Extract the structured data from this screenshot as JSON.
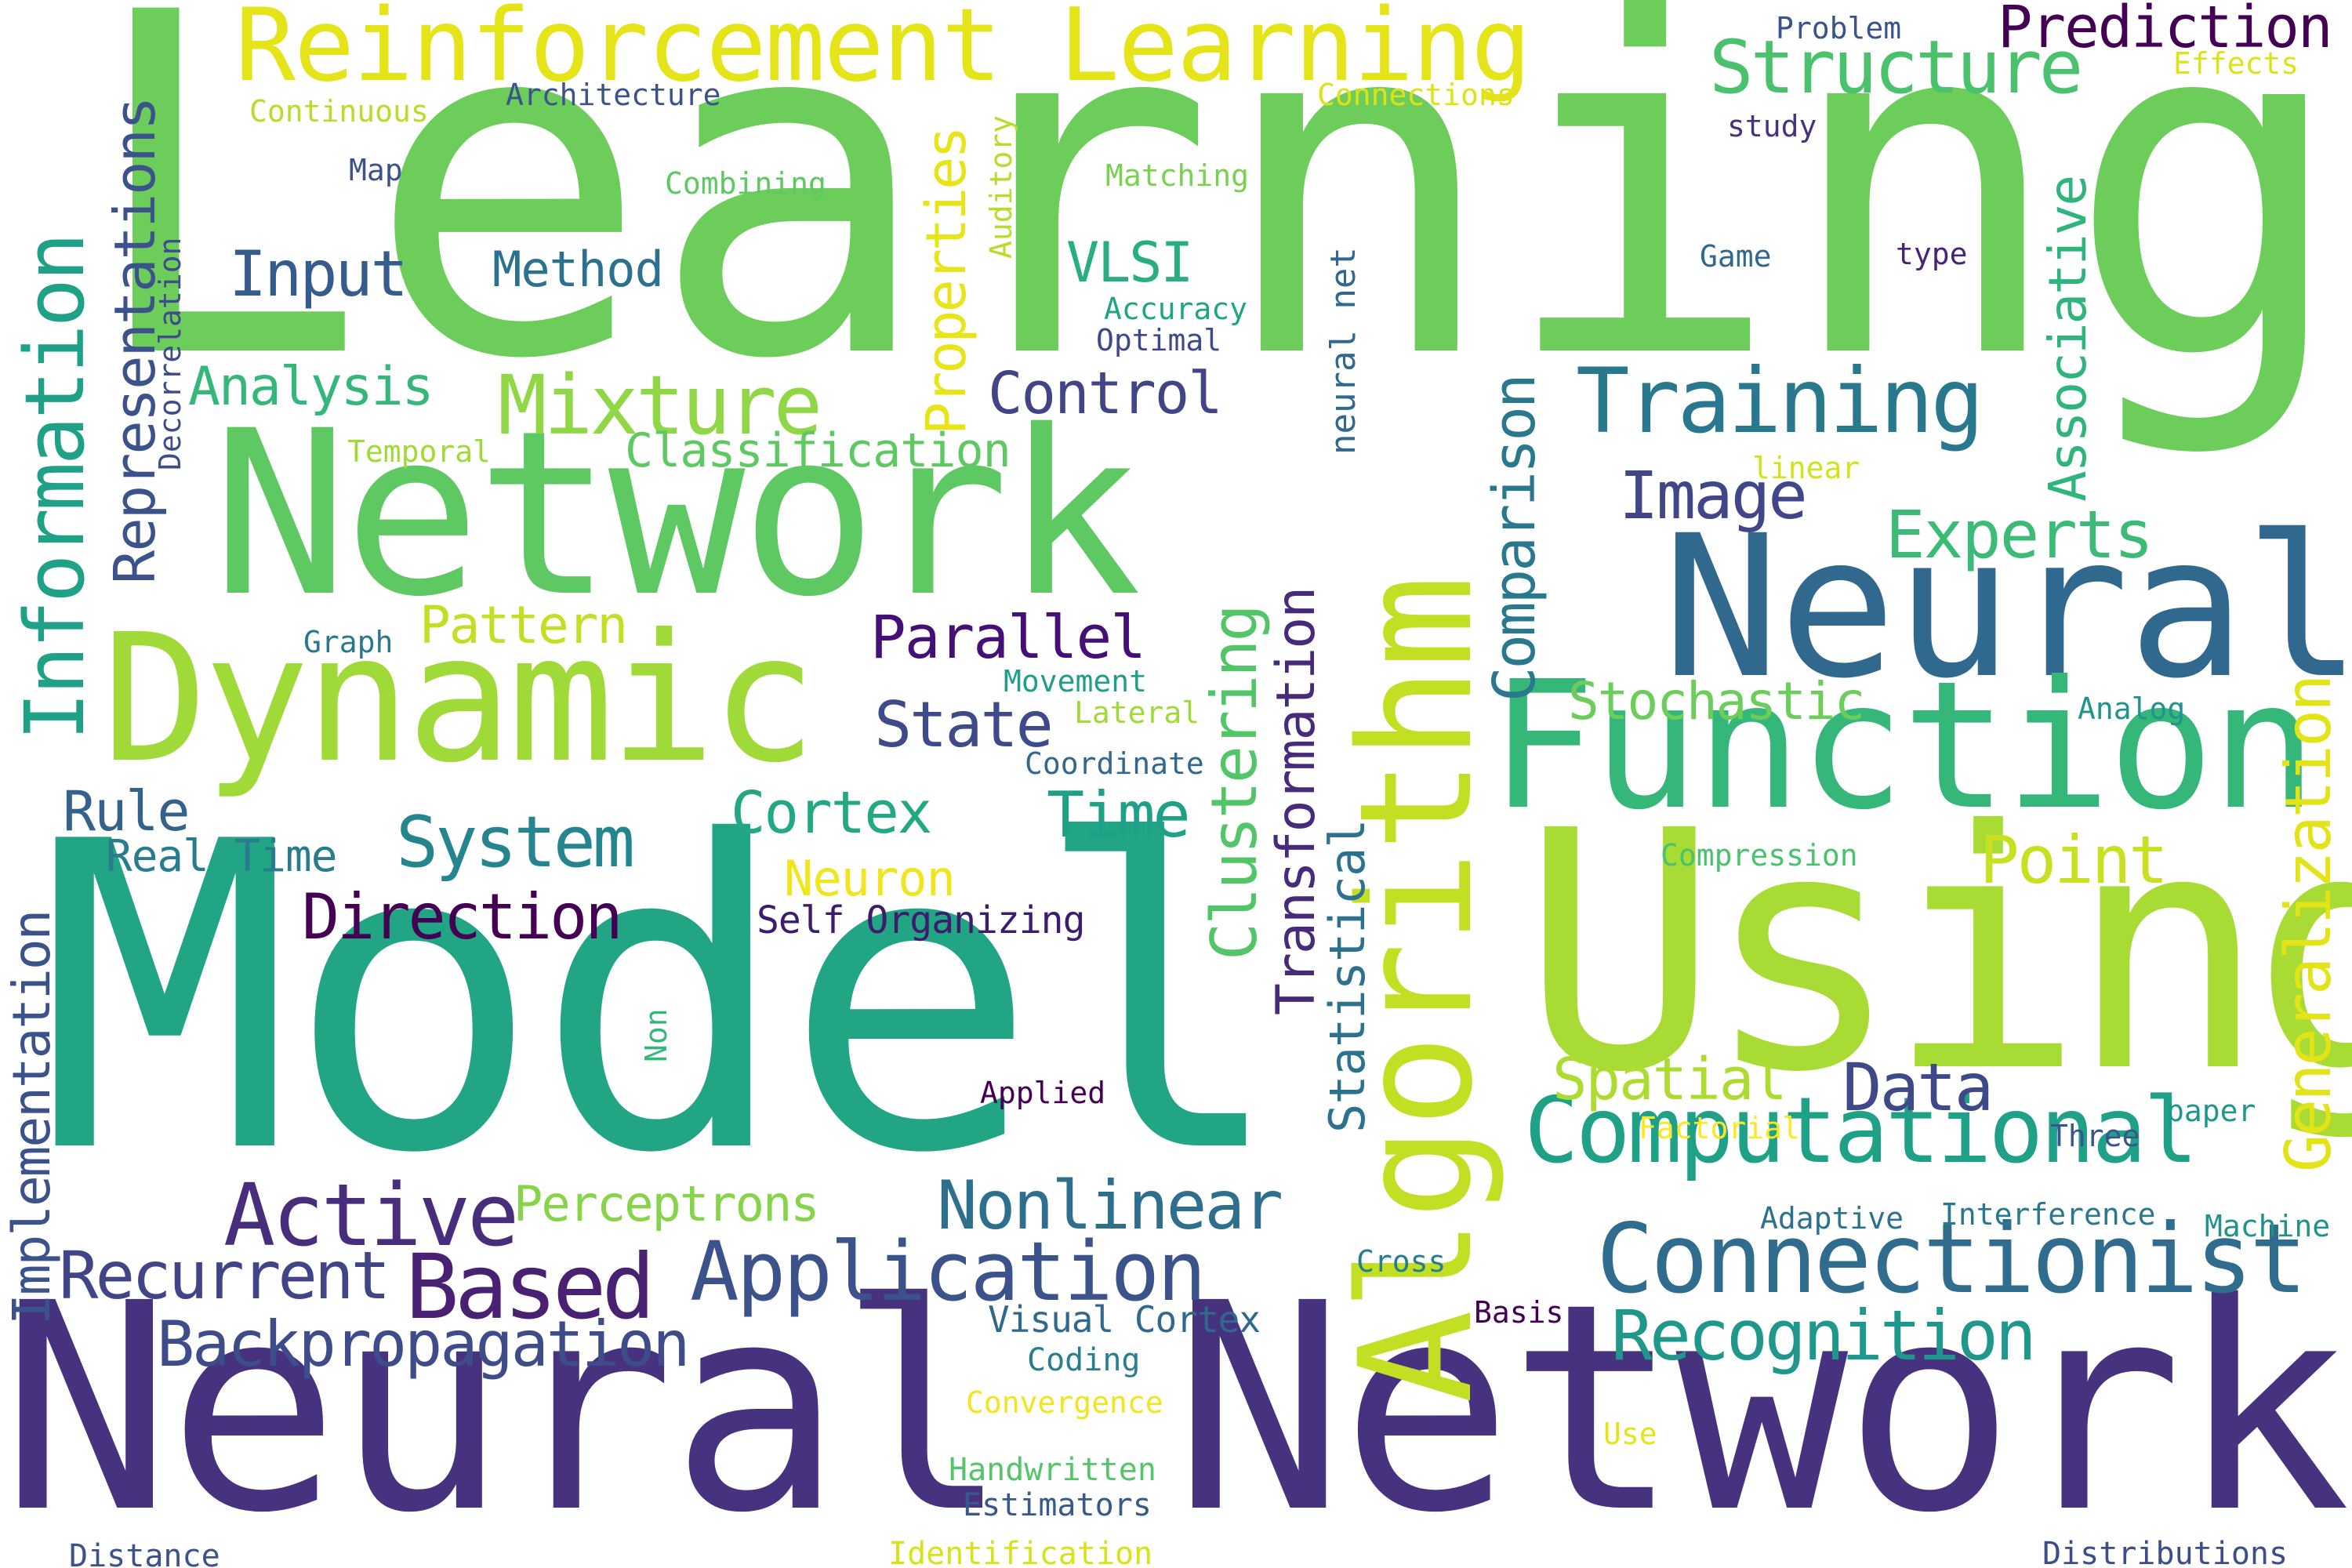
{
  "palette": {
    "dark_purple": "#440154",
    "indigo": "#46327e",
    "blue": "#365c8d",
    "steel_blue": "#2f6c8e",
    "teal_blue": "#277f8e",
    "teal": "#1fa187",
    "sea_green": "#21a585",
    "green": "#4ac16d",
    "bright_green": "#6ccd5a",
    "lime": "#a0da39",
    "yellow_green": "#c2df23",
    "yellow": "#e4e419",
    "bright_yellow": "#f0e51f"
  },
  "words": [
    {
      "text": "Learning",
      "color": "#6ccd5a"
    },
    {
      "text": "Neural Network",
      "color": "#46327e"
    },
    {
      "text": "Model",
      "color": "#21a585"
    },
    {
      "text": "Network",
      "color": "#5ec962"
    },
    {
      "text": "Using",
      "color": "#a8db34"
    },
    {
      "text": "Neural",
      "color": "#31688e"
    },
    {
      "text": "Function",
      "color": "#35b779"
    },
    {
      "text": "Dynamic",
      "color": "#a0da39"
    },
    {
      "text": "Algorithm",
      "color": "#c2df23"
    },
    {
      "text": "Reinforcement Learning",
      "color": "#e4e419"
    },
    {
      "text": "Connectionist",
      "color": "#2f6c8e"
    },
    {
      "text": "Computational",
      "color": "#1fa187"
    },
    {
      "text": "Training",
      "color": "#2a788e"
    },
    {
      "text": "Application",
      "color": "#3b528b"
    },
    {
      "text": "Nonlinear",
      "color": "#2e6f8e"
    },
    {
      "text": "Recognition",
      "color": "#1f988b"
    },
    {
      "text": "Active",
      "color": "#472d7b"
    },
    {
      "text": "Based",
      "color": "#482173"
    },
    {
      "text": "Backpropagation",
      "color": "#3e4c8a"
    },
    {
      "text": "Recurrent",
      "color": "#414487"
    },
    {
      "text": "Mixture",
      "color": "#8fd744"
    },
    {
      "text": "Network",
      "color": "#5ec962"
    },
    {
      "text": "Structure",
      "color": "#4ac16d"
    },
    {
      "text": "Prediction",
      "color": "#440154"
    },
    {
      "text": "Experts",
      "color": "#3bbb75"
    },
    {
      "text": "Image",
      "color": "#404688"
    },
    {
      "text": "Data",
      "color": "#3e4989"
    },
    {
      "text": "Point",
      "color": "#c8e020"
    },
    {
      "text": "Spatial",
      "color": "#addc30"
    },
    {
      "text": "Direction",
      "color": "#440154"
    },
    {
      "text": "System",
      "color": "#25858e"
    },
    {
      "text": "Cortex",
      "color": "#22a884"
    },
    {
      "text": "Time",
      "color": "#1fa187"
    },
    {
      "text": "State",
      "color": "#3e4a89"
    },
    {
      "text": "Parallel",
      "color": "#440f76"
    },
    {
      "text": "Stochastic",
      "color": "#6ccd5a"
    },
    {
      "text": "Control",
      "color": "#414487"
    },
    {
      "text": "Input",
      "color": "#365c8d"
    },
    {
      "text": "Method",
      "color": "#2c728e"
    },
    {
      "text": "Analysis",
      "color": "#35b779"
    },
    {
      "text": "VLSI",
      "color": "#29af7f"
    },
    {
      "text": "Pattern",
      "color": "#c2df23"
    },
    {
      "text": "Classification",
      "color": "#5ec962"
    },
    {
      "text": "Neuron",
      "color": "#f0e51f"
    },
    {
      "text": "Perceptrons",
      "color": "#86d549"
    },
    {
      "text": "Rule",
      "color": "#33638d"
    },
    {
      "text": "Real Time",
      "color": "#287c8e"
    },
    {
      "text": "Self Organizing",
      "color": "#3d1c6e"
    },
    {
      "text": "Visual Cortex",
      "color": "#31688e"
    },
    {
      "text": "Coding",
      "color": "#277f8e"
    },
    {
      "text": "Convergence",
      "color": "#f0e51f"
    },
    {
      "text": "Handwritten",
      "color": "#54c568"
    },
    {
      "text": "Estimators",
      "color": "#375a8c"
    },
    {
      "text": "Identification",
      "color": "#d8e219"
    },
    {
      "text": "Distance",
      "color": "#3b528b"
    },
    {
      "text": "Distributions",
      "color": "#3d4d8a"
    },
    {
      "text": "Use",
      "color": "#e5e419"
    },
    {
      "text": "Basis",
      "color": "#440154"
    },
    {
      "text": "Cross",
      "color": "#287d8e"
    },
    {
      "text": "Adaptive",
      "color": "#2c728e"
    },
    {
      "text": "Interference",
      "color": "#2a788e"
    },
    {
      "text": "Machine",
      "color": "#21918c"
    },
    {
      "text": "Three",
      "color": "#39568c"
    },
    {
      "text": "paper",
      "color": "#1f968b"
    },
    {
      "text": "Factorial",
      "color": "#fde725"
    },
    {
      "text": "Compression",
      "color": "#4ac16d"
    },
    {
      "text": "Analog",
      "color": "#20938c"
    },
    {
      "text": "Coordinate",
      "color": "#31688e"
    },
    {
      "text": "Lateral",
      "color": "#9fda3a"
    },
    {
      "text": "Movement",
      "color": "#1f9e89"
    },
    {
      "text": "Graph",
      "color": "#2a788e"
    },
    {
      "text": "Temporal",
      "color": "#a0da39"
    },
    {
      "text": "Applied",
      "color": "#440154"
    },
    {
      "text": "Optimal",
      "color": "#3e4989"
    },
    {
      "text": "Accuracy",
      "color": "#20a486"
    },
    {
      "text": "Matching",
      "color": "#7ad151"
    },
    {
      "text": "Combining",
      "color": "#5ec962"
    },
    {
      "text": "Map",
      "color": "#3b528b"
    },
    {
      "text": "Architecture",
      "color": "#3b528b"
    },
    {
      "text": "Continuous",
      "color": "#b5de2b"
    },
    {
      "text": "Connections",
      "color": "#dde318"
    },
    {
      "text": "Problem",
      "color": "#3b528b"
    },
    {
      "text": "Effects",
      "color": "#dde318"
    },
    {
      "text": "study",
      "color": "#46327e"
    },
    {
      "text": "Game",
      "color": "#31688e"
    },
    {
      "text": "type",
      "color": "#482475"
    },
    {
      "text": "linear",
      "color": "#d2e21b"
    },
    {
      "text": "Information",
      "color": "#1fa187"
    },
    {
      "text": "Representations",
      "color": "#3b528b"
    },
    {
      "text": "Implementation",
      "color": "#3b528b"
    },
    {
      "text": "Decorrelation",
      "color": "#3e4c8a"
    },
    {
      "text": "Properties",
      "color": "#e7e419"
    },
    {
      "text": "Auditory",
      "color": "#b5de2b"
    },
    {
      "text": "neural net",
      "color": "#31688e"
    },
    {
      "text": "Comparison",
      "color": "#2a788e"
    },
    {
      "text": "Associative",
      "color": "#2fb47c"
    },
    {
      "text": "Generalization",
      "color": "#e2e418"
    },
    {
      "text": "Clustering",
      "color": "#52c569"
    },
    {
      "text": "Transformation",
      "color": "#472a7a"
    },
    {
      "text": "Statistical",
      "color": "#2c718e"
    },
    {
      "text": "Non",
      "color": "#35b779"
    }
  ]
}
